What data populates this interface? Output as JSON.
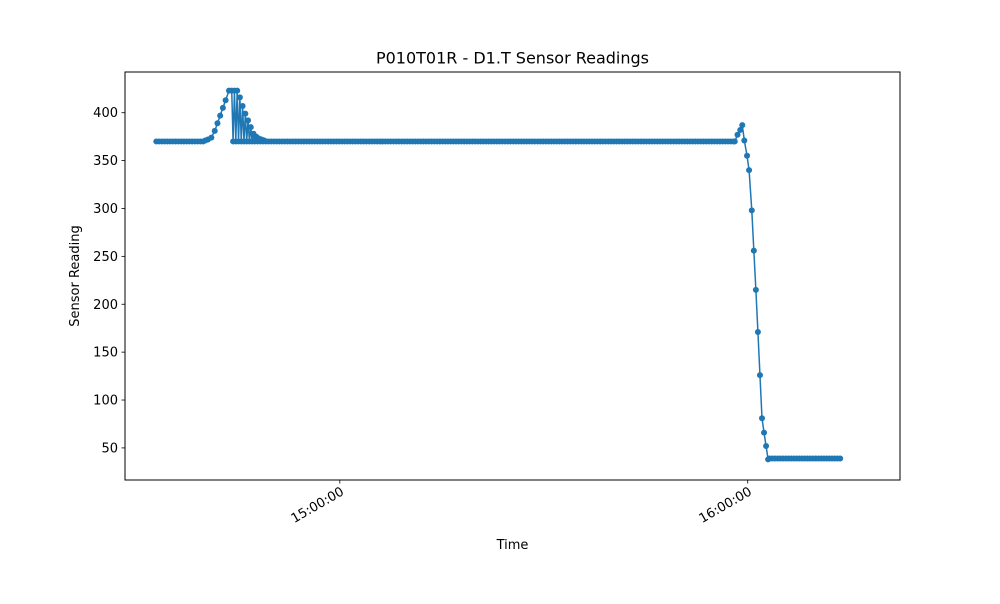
{
  "chart_data": {
    "type": "line",
    "title": "P010T01R - D1.T Sensor Readings",
    "xlabel": "Time",
    "ylabel": "Sensor Reading",
    "x_unit": "minutes since 14:00:00",
    "xlim": [
      14.2,
      71.2
    ],
    "ylim": [
      16.5,
      442.5
    ],
    "x_ticks": [
      {
        "value": 30,
        "label": "15:00:00"
      },
      {
        "value": 60,
        "label": "16:00:00"
      }
    ],
    "y_ticks": [
      {
        "value": 50,
        "label": "50"
      },
      {
        "value": 100,
        "label": "100"
      },
      {
        "value": 150,
        "label": "150"
      },
      {
        "value": 200,
        "label": "200"
      },
      {
        "value": 250,
        "label": "250"
      },
      {
        "value": 300,
        "label": "300"
      },
      {
        "value": 350,
        "label": "350"
      },
      {
        "value": 400,
        "label": "400"
      }
    ],
    "grid": false,
    "legend": "none",
    "series": [
      {
        "name": "D1.T",
        "color": "#1f77b4",
        "marker": "circle",
        "segments": [
          {
            "x_start": 16.5,
            "x_end": 19.95,
            "y": 370
          },
          {
            "x_start": 22.15,
            "x_end": 58.95,
            "y": 370
          },
          {
            "x_start": 61.6,
            "x_end": 66.8,
            "y": 39
          }
        ],
        "points": [
          {
            "x": 20.1,
            "y": 371
          },
          {
            "x": 20.3,
            "y": 372
          },
          {
            "x": 20.55,
            "y": 374
          },
          {
            "x": 20.8,
            "y": 381
          },
          {
            "x": 21.0,
            "y": 389
          },
          {
            "x": 21.2,
            "y": 397
          },
          {
            "x": 21.4,
            "y": 405
          },
          {
            "x": 21.6,
            "y": 413
          },
          {
            "x": 21.85,
            "y": 423
          },
          {
            "x": 22.05,
            "y": 423
          },
          {
            "x": 22.25,
            "y": 423
          },
          {
            "x": 22.45,
            "y": 423
          },
          {
            "x": 22.65,
            "y": 416
          },
          {
            "x": 22.85,
            "y": 407
          },
          {
            "x": 23.05,
            "y": 399
          },
          {
            "x": 23.25,
            "y": 392
          },
          {
            "x": 23.45,
            "y": 385
          },
          {
            "x": 23.65,
            "y": 378
          },
          {
            "x": 23.85,
            "y": 375
          },
          {
            "x": 24.05,
            "y": 373
          },
          {
            "x": 24.25,
            "y": 372
          },
          {
            "x": 24.45,
            "y": 371
          },
          {
            "x": 59.05,
            "y": 370
          },
          {
            "x": 59.25,
            "y": 377
          },
          {
            "x": 59.45,
            "y": 382
          },
          {
            "x": 59.6,
            "y": 387
          },
          {
            "x": 59.75,
            "y": 371
          },
          {
            "x": 59.95,
            "y": 355
          },
          {
            "x": 60.1,
            "y": 340
          },
          {
            "x": 60.3,
            "y": 298
          },
          {
            "x": 60.45,
            "y": 256
          },
          {
            "x": 60.6,
            "y": 215
          },
          {
            "x": 60.75,
            "y": 171
          },
          {
            "x": 60.9,
            "y": 126
          },
          {
            "x": 61.05,
            "y": 81
          },
          {
            "x": 61.2,
            "y": 66
          },
          {
            "x": 61.35,
            "y": 52
          },
          {
            "x": 61.5,
            "y": 38
          }
        ]
      }
    ]
  }
}
